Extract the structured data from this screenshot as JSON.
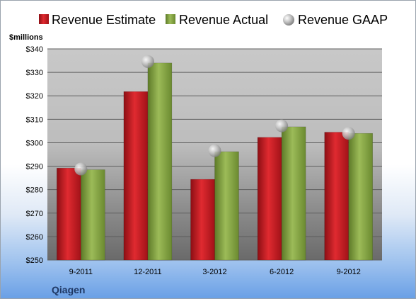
{
  "chart_data": {
    "type": "bar",
    "title": "",
    "xlabel": "",
    "ylabel": "$millions",
    "ylim": [
      250,
      340
    ],
    "yticks": [
      "$250",
      "$260",
      "$270",
      "$280",
      "$290",
      "$300",
      "$310",
      "$320",
      "$330",
      "$340"
    ],
    "categories": [
      "9-2011",
      "12-2011",
      "3-2012",
      "6-2012",
      "9-2012"
    ],
    "series": [
      {
        "name": "Revenue Estimate",
        "kind": "bar",
        "color": "#c0191f",
        "values": [
          289.2,
          321.8,
          284.4,
          302.3,
          304.5
        ]
      },
      {
        "name": "Revenue Actual",
        "kind": "bar",
        "color": "#7f9a3f",
        "values": [
          288.5,
          334.0,
          296.2,
          306.8,
          304.0
        ]
      },
      {
        "name": "Revenue GAAP",
        "kind": "marker",
        "color": "#b5b5b5",
        "values": [
          288.8,
          334.6,
          296.6,
          307.2,
          304.0
        ]
      }
    ],
    "grid": true,
    "legend": "top"
  },
  "footer": {
    "company": "Qiagen"
  }
}
